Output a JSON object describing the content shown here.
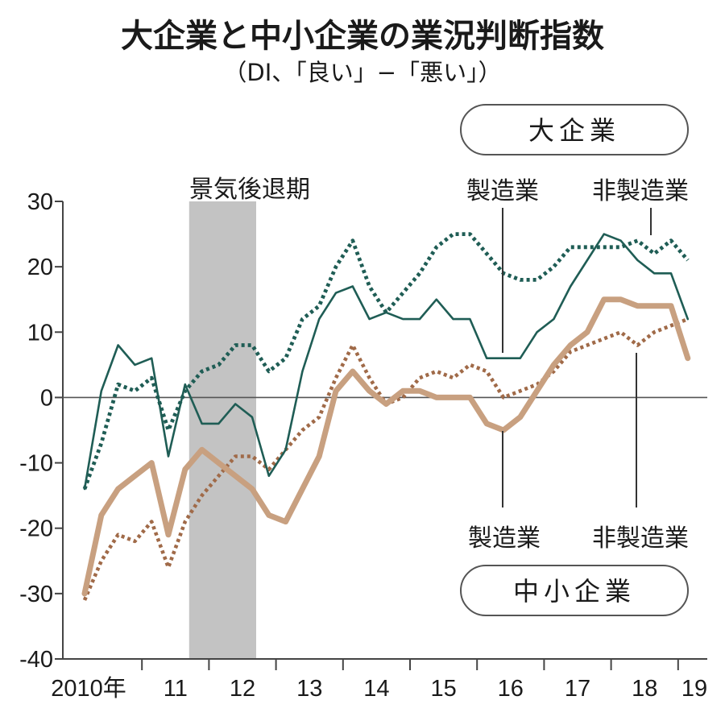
{
  "title": "大企業と中小企業の業況判断指数",
  "subtitle": "（DI、「良い」−「悪い」）",
  "chart_data": {
    "type": "line",
    "x_tick_labels": [
      "2010年",
      "11",
      "12",
      "13",
      "14",
      "15",
      "16",
      "17",
      "18",
      "19"
    ],
    "y_ticks": [
      30,
      20,
      10,
      0,
      -10,
      -20,
      -30,
      -40
    ],
    "ylim": [
      -40,
      30
    ],
    "recession_label": "景気後退期",
    "recession_range_quarters": [
      6,
      10
    ],
    "groups": [
      {
        "name": "大企業",
        "series": [
          {
            "name": "製造業",
            "style": "solid-thin",
            "color": "#1f5d55",
            "values": [
              -14,
              1,
              8,
              5,
              6,
              -9,
              2,
              -4,
              -4,
              -1,
              -3,
              -12,
              -8,
              4,
              12,
              16,
              17,
              12,
              13,
              12,
              12,
              15,
              12,
              12,
              6,
              6,
              6,
              10,
              12,
              17,
              21,
              25,
              24,
              21,
              19,
              19,
              12
            ]
          },
          {
            "name": "非製造業",
            "style": "dotted-thin",
            "color": "#1f5d55",
            "values": [
              -14,
              -7,
              2,
              1,
              3,
              -5,
              1,
              4,
              5,
              8,
              8,
              4,
              6,
              12,
              14,
              20,
              24,
              17,
              13,
              16,
              19,
              23,
              25,
              25,
              22,
              19,
              18,
              18,
              20,
              23,
              23,
              23,
              23,
              24,
              22,
              24,
              21
            ]
          }
        ]
      },
      {
        "name": "中小企業",
        "series": [
          {
            "name": "製造業",
            "style": "solid-thick",
            "color": "#c8a080",
            "values": [
              -30,
              -18,
              -14,
              -12,
              -10,
              -21,
              -11,
              -8,
              -10,
              -12,
              -14,
              -18,
              -19,
              -14,
              -9,
              1,
              4,
              1,
              -1,
              1,
              1,
              0,
              0,
              0,
              -4,
              -5,
              -3,
              1,
              5,
              8,
              10,
              15,
              15,
              14,
              14,
              14,
              6
            ]
          },
          {
            "name": "非製造業",
            "style": "dotted-thick",
            "color": "#a06a48",
            "values": [
              -31,
              -25,
              -21,
              -22,
              -19,
              -26,
              -19,
              -15,
              -12,
              -9,
              -9,
              -11,
              -8,
              -5,
              -3,
              3,
              8,
              3,
              -1,
              0,
              3,
              4,
              3,
              5,
              4,
              0,
              1,
              2,
              4,
              7,
              8,
              9,
              10,
              8,
              10,
              11,
              12
            ]
          }
        ]
      }
    ],
    "annotations": {
      "large_mfg": "製造業",
      "large_nonmfg": "非製造業",
      "small_mfg": "製造業",
      "small_nonmfg": "非製造業"
    }
  }
}
